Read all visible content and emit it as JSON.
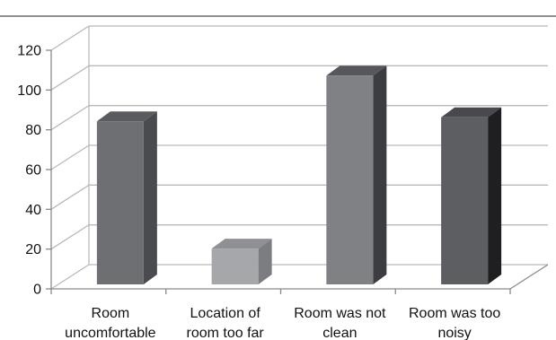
{
  "chart_data": {
    "type": "bar",
    "style": "3d-column",
    "categories": [
      [
        "Room",
        "uncomfortable"
      ],
      [
        "Location of",
        "room too far"
      ],
      [
        "Room was not",
        "clean"
      ],
      [
        "Room was too",
        "noisy"
      ]
    ],
    "values": [
      82,
      18,
      105,
      84
    ],
    "ylim": [
      0,
      120
    ],
    "yticks": [
      0,
      20,
      40,
      60,
      80,
      100,
      120
    ],
    "grid": true,
    "legend": "none",
    "bar_colors": [
      {
        "front": "#6e6f73",
        "side": "#4a4b4f",
        "top": "#5a5b5f"
      },
      {
        "front": "#a6a7aa",
        "side": "#7c7d80",
        "top": "#8f9093"
      },
      {
        "front": "#808185",
        "side": "#3c3d40",
        "top": "#56575a"
      },
      {
        "front": "#5d5e62",
        "side": "#1f1f22",
        "top": "#48494c"
      }
    ],
    "grid_color": "#b9b9b9",
    "frame_color": "#8a8a8a"
  }
}
